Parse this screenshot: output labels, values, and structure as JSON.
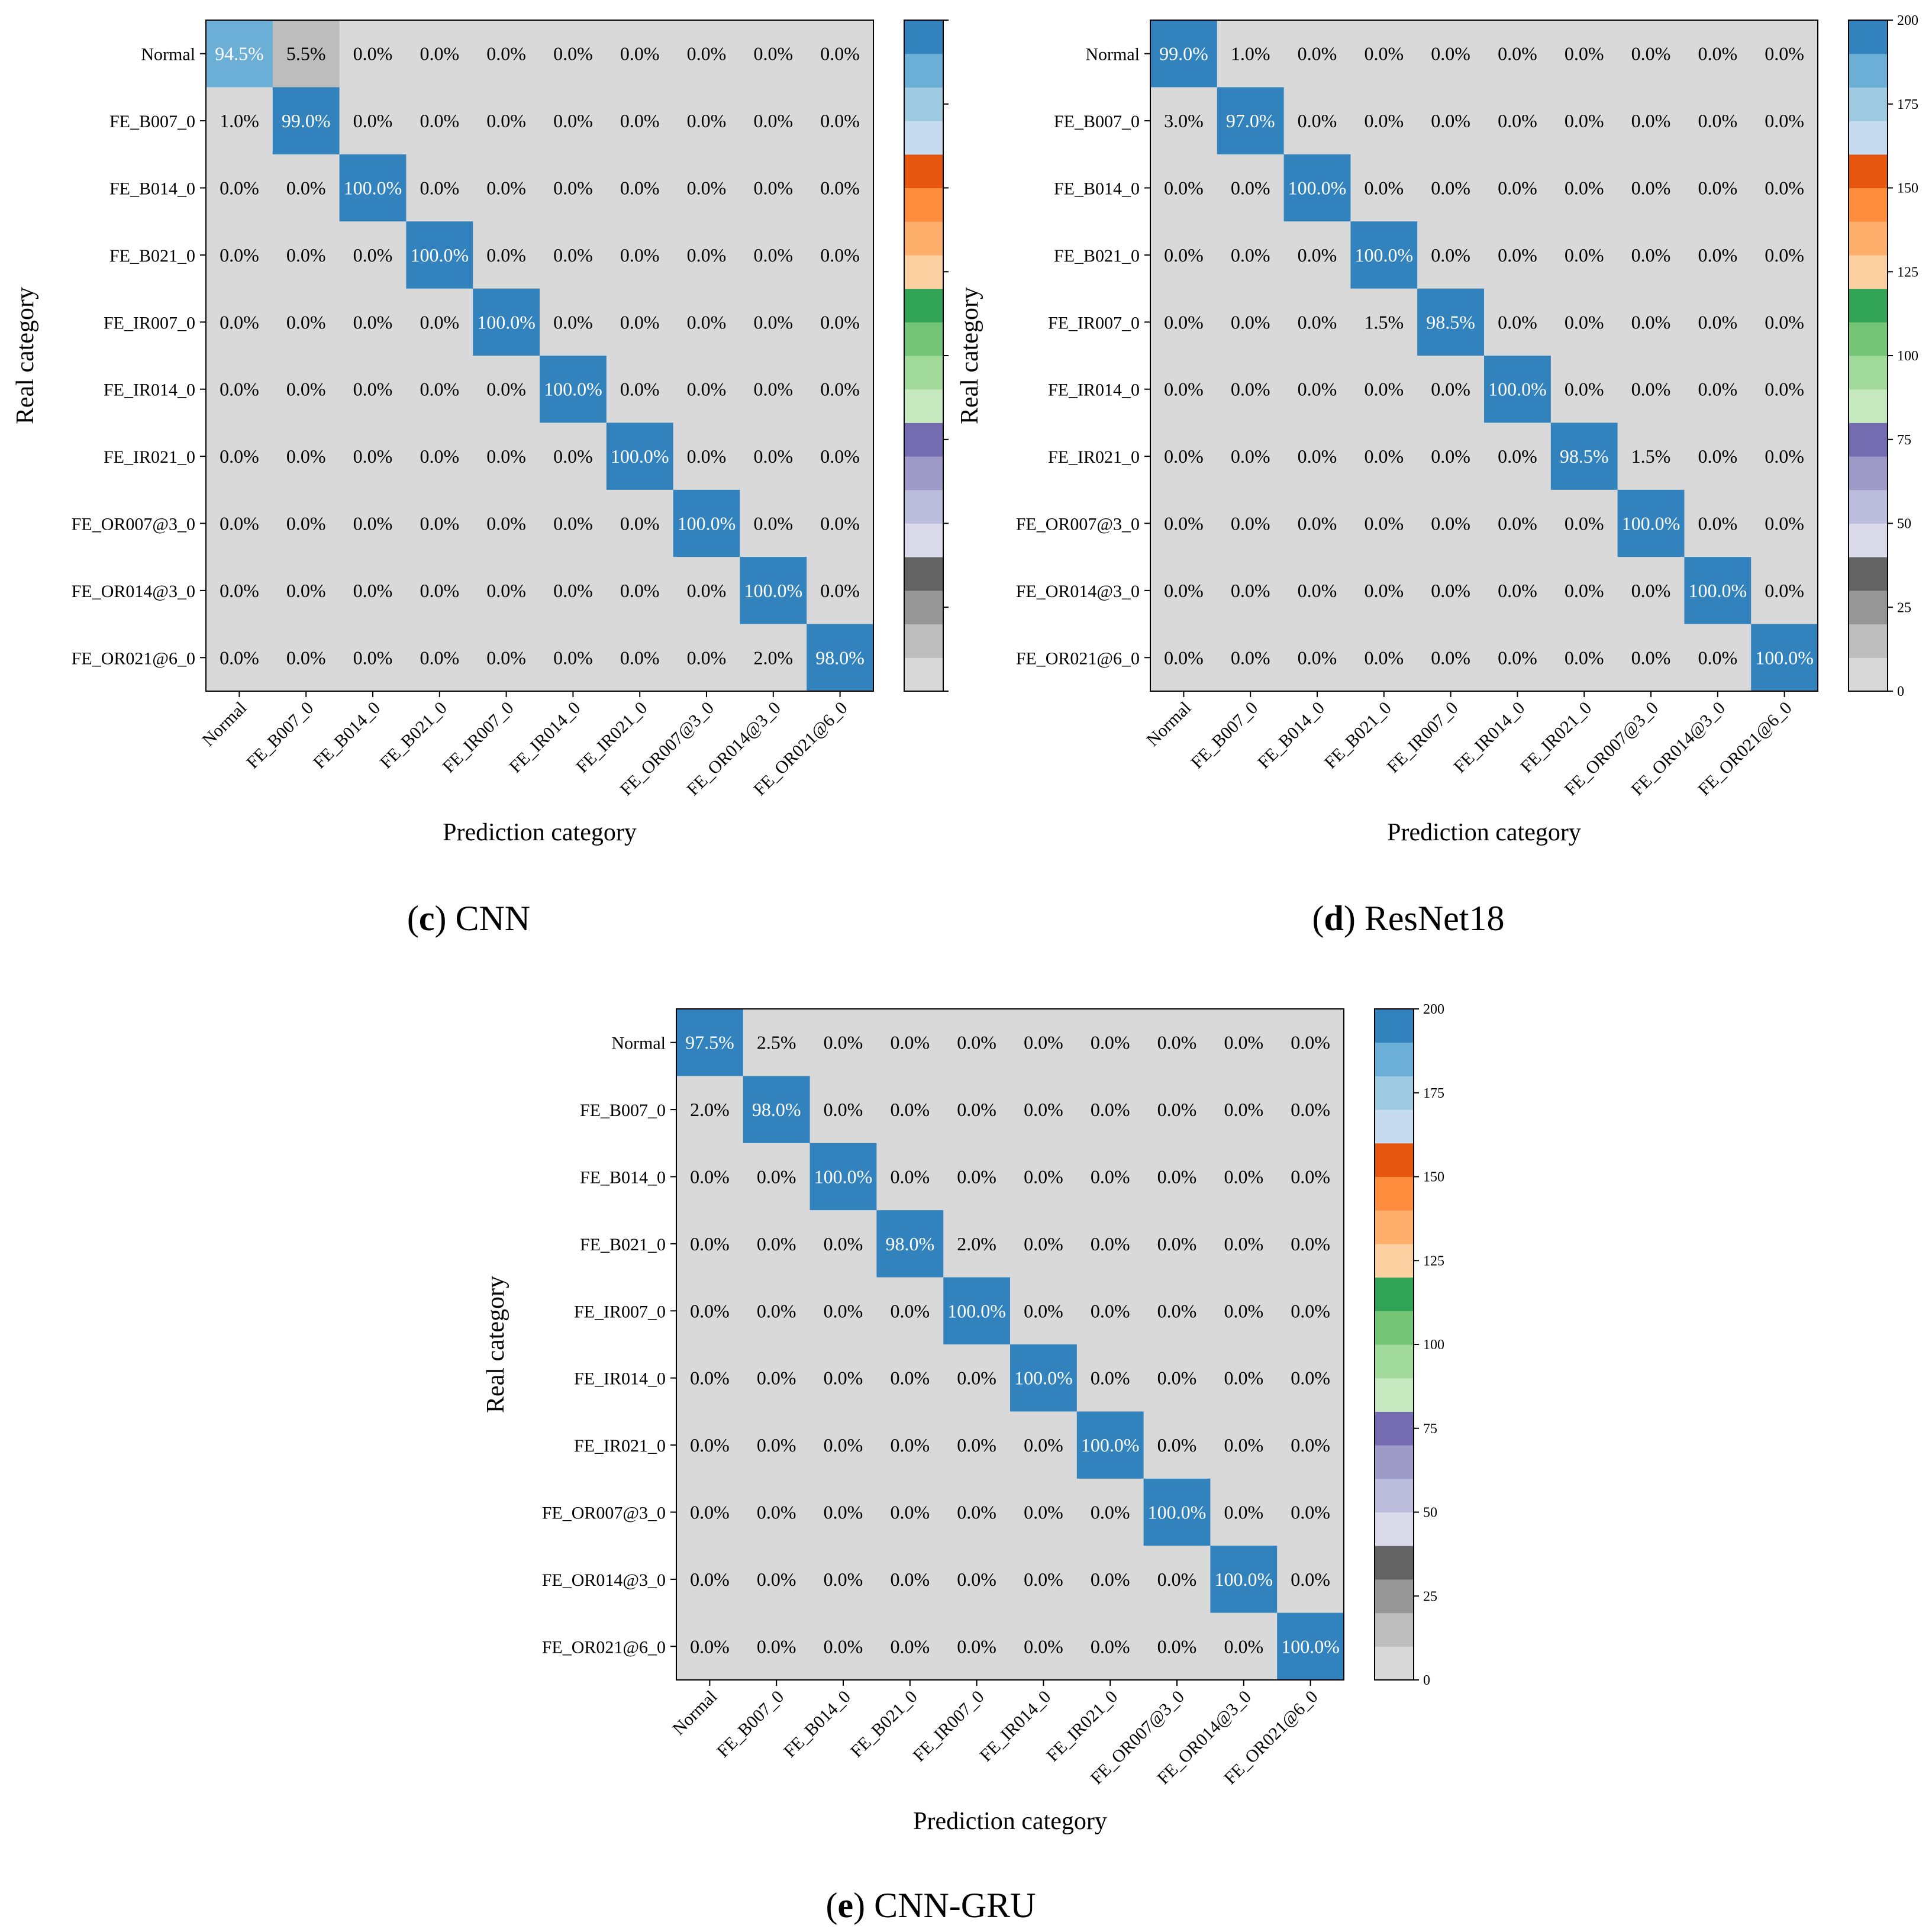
{
  "figure": {
    "categories": [
      "Normal",
      "FE_B007_0",
      "FE_B014_0",
      "FE_B021_0",
      "FE_IR007_0",
      "FE_IR014_0",
      "FE_IR021_0",
      "FE_OR007@3_0",
      "FE_OR014@3_0",
      "FE_OR021@6_0"
    ],
    "colormap": [
      "#d9d9d9",
      "#bdbdbd",
      "#969696",
      "#636363",
      "#dadaeb",
      "#bcbddc",
      "#9e9ac8",
      "#756bb1",
      "#c7e9c0",
      "#a1d99b",
      "#74c476",
      "#31a354",
      "#fdd0a2",
      "#fdae6b",
      "#fd8d3c",
      "#e6550d",
      "#c6dbef",
      "#9ecae1",
      "#6baed6",
      "#3182bd"
    ],
    "colorbar_ticks": [
      "0",
      "25",
      "50",
      "75",
      "100",
      "125",
      "150",
      "175",
      "200"
    ],
    "white_text_color": "#ffffff",
    "black_text_color": "#000000"
  },
  "chart_data": [
    {
      "type": "heatmap",
      "panel_letter": "c",
      "panel_title": "CNN",
      "xlabel": "Prediction category",
      "ylabel": "Real category",
      "value_range": [
        0,
        200
      ],
      "colorbar_tick_labels_visible": false,
      "values": [
        [
          189,
          11,
          0,
          0,
          0,
          0,
          0,
          0,
          0,
          0
        ],
        [
          2,
          198,
          0,
          0,
          0,
          0,
          0,
          0,
          0,
          0
        ],
        [
          0,
          0,
          200,
          0,
          0,
          0,
          0,
          0,
          0,
          0
        ],
        [
          0,
          0,
          0,
          200,
          0,
          0,
          0,
          0,
          0,
          0
        ],
        [
          0,
          0,
          0,
          0,
          200,
          0,
          0,
          0,
          0,
          0
        ],
        [
          0,
          0,
          0,
          0,
          0,
          200,
          0,
          0,
          0,
          0
        ],
        [
          0,
          0,
          0,
          0,
          0,
          0,
          200,
          0,
          0,
          0
        ],
        [
          0,
          0,
          0,
          0,
          0,
          0,
          0,
          200,
          0,
          0
        ],
        [
          0,
          0,
          0,
          0,
          0,
          0,
          0,
          0,
          200,
          0
        ],
        [
          0,
          0,
          0,
          0,
          0,
          0,
          0,
          0,
          4,
          196
        ]
      ],
      "labels": [
        [
          "94.5%",
          "5.5%",
          "0.0%",
          "0.0%",
          "0.0%",
          "0.0%",
          "0.0%",
          "0.0%",
          "0.0%",
          "0.0%"
        ],
        [
          "1.0%",
          "99.0%",
          "0.0%",
          "0.0%",
          "0.0%",
          "0.0%",
          "0.0%",
          "0.0%",
          "0.0%",
          "0.0%"
        ],
        [
          "0.0%",
          "0.0%",
          "100.0%",
          "0.0%",
          "0.0%",
          "0.0%",
          "0.0%",
          "0.0%",
          "0.0%",
          "0.0%"
        ],
        [
          "0.0%",
          "0.0%",
          "0.0%",
          "100.0%",
          "0.0%",
          "0.0%",
          "0.0%",
          "0.0%",
          "0.0%",
          "0.0%"
        ],
        [
          "0.0%",
          "0.0%",
          "0.0%",
          "0.0%",
          "100.0%",
          "0.0%",
          "0.0%",
          "0.0%",
          "0.0%",
          "0.0%"
        ],
        [
          "0.0%",
          "0.0%",
          "0.0%",
          "0.0%",
          "0.0%",
          "100.0%",
          "0.0%",
          "0.0%",
          "0.0%",
          "0.0%"
        ],
        [
          "0.0%",
          "0.0%",
          "0.0%",
          "0.0%",
          "0.0%",
          "0.0%",
          "100.0%",
          "0.0%",
          "0.0%",
          "0.0%"
        ],
        [
          "0.0%",
          "0.0%",
          "0.0%",
          "0.0%",
          "0.0%",
          "0.0%",
          "0.0%",
          "100.0%",
          "0.0%",
          "0.0%"
        ],
        [
          "0.0%",
          "0.0%",
          "0.0%",
          "0.0%",
          "0.0%",
          "0.0%",
          "0.0%",
          "0.0%",
          "100.0%",
          "0.0%"
        ],
        [
          "0.0%",
          "0.0%",
          "0.0%",
          "0.0%",
          "0.0%",
          "0.0%",
          "0.0%",
          "0.0%",
          "2.0%",
          "98.0%"
        ]
      ]
    },
    {
      "type": "heatmap",
      "panel_letter": "d",
      "panel_title": "ResNet18",
      "xlabel": "Prediction category",
      "ylabel": "Real category",
      "value_range": [
        0,
        200
      ],
      "colorbar_tick_labels_visible": true,
      "values": [
        [
          198,
          2,
          0,
          0,
          0,
          0,
          0,
          0,
          0,
          0
        ],
        [
          6,
          194,
          0,
          0,
          0,
          0,
          0,
          0,
          0,
          0
        ],
        [
          0,
          0,
          200,
          0,
          0,
          0,
          0,
          0,
          0,
          0
        ],
        [
          0,
          0,
          0,
          200,
          0,
          0,
          0,
          0,
          0,
          0
        ],
        [
          0,
          0,
          0,
          3,
          197,
          0,
          0,
          0,
          0,
          0
        ],
        [
          0,
          0,
          0,
          0,
          0,
          200,
          0,
          0,
          0,
          0
        ],
        [
          0,
          0,
          0,
          0,
          0,
          0,
          197,
          3,
          0,
          0
        ],
        [
          0,
          0,
          0,
          0,
          0,
          0,
          0,
          200,
          0,
          0
        ],
        [
          0,
          0,
          0,
          0,
          0,
          0,
          0,
          0,
          200,
          0
        ],
        [
          0,
          0,
          0,
          0,
          0,
          0,
          0,
          0,
          0,
          200
        ]
      ],
      "labels": [
        [
          "99.0%",
          "1.0%",
          "0.0%",
          "0.0%",
          "0.0%",
          "0.0%",
          "0.0%",
          "0.0%",
          "0.0%",
          "0.0%"
        ],
        [
          "3.0%",
          "97.0%",
          "0.0%",
          "0.0%",
          "0.0%",
          "0.0%",
          "0.0%",
          "0.0%",
          "0.0%",
          "0.0%"
        ],
        [
          "0.0%",
          "0.0%",
          "100.0%",
          "0.0%",
          "0.0%",
          "0.0%",
          "0.0%",
          "0.0%",
          "0.0%",
          "0.0%"
        ],
        [
          "0.0%",
          "0.0%",
          "0.0%",
          "100.0%",
          "0.0%",
          "0.0%",
          "0.0%",
          "0.0%",
          "0.0%",
          "0.0%"
        ],
        [
          "0.0%",
          "0.0%",
          "0.0%",
          "1.5%",
          "98.5%",
          "0.0%",
          "0.0%",
          "0.0%",
          "0.0%",
          "0.0%"
        ],
        [
          "0.0%",
          "0.0%",
          "0.0%",
          "0.0%",
          "0.0%",
          "100.0%",
          "0.0%",
          "0.0%",
          "0.0%",
          "0.0%"
        ],
        [
          "0.0%",
          "0.0%",
          "0.0%",
          "0.0%",
          "0.0%",
          "0.0%",
          "98.5%",
          "1.5%",
          "0.0%",
          "0.0%"
        ],
        [
          "0.0%",
          "0.0%",
          "0.0%",
          "0.0%",
          "0.0%",
          "0.0%",
          "0.0%",
          "100.0%",
          "0.0%",
          "0.0%"
        ],
        [
          "0.0%",
          "0.0%",
          "0.0%",
          "0.0%",
          "0.0%",
          "0.0%",
          "0.0%",
          "0.0%",
          "100.0%",
          "0.0%"
        ],
        [
          "0.0%",
          "0.0%",
          "0.0%",
          "0.0%",
          "0.0%",
          "0.0%",
          "0.0%",
          "0.0%",
          "0.0%",
          "100.0%"
        ]
      ]
    },
    {
      "type": "heatmap",
      "panel_letter": "e",
      "panel_title": "CNN-GRU",
      "xlabel": "Prediction category",
      "ylabel": "Real category",
      "value_range": [
        0,
        200
      ],
      "colorbar_tick_labels_visible": true,
      "values": [
        [
          195,
          5,
          0,
          0,
          0,
          0,
          0,
          0,
          0,
          0
        ],
        [
          4,
          196,
          0,
          0,
          0,
          0,
          0,
          0,
          0,
          0
        ],
        [
          0,
          0,
          200,
          0,
          0,
          0,
          0,
          0,
          0,
          0
        ],
        [
          0,
          0,
          0,
          196,
          4,
          0,
          0,
          0,
          0,
          0
        ],
        [
          0,
          0,
          0,
          0,
          200,
          0,
          0,
          0,
          0,
          0
        ],
        [
          0,
          0,
          0,
          0,
          0,
          200,
          0,
          0,
          0,
          0
        ],
        [
          0,
          0,
          0,
          0,
          0,
          0,
          200,
          0,
          0,
          0
        ],
        [
          0,
          0,
          0,
          0,
          0,
          0,
          0,
          200,
          0,
          0
        ],
        [
          0,
          0,
          0,
          0,
          0,
          0,
          0,
          0,
          200,
          0
        ],
        [
          0,
          0,
          0,
          0,
          0,
          0,
          0,
          0,
          0,
          200
        ]
      ],
      "labels": [
        [
          "97.5%",
          "2.5%",
          "0.0%",
          "0.0%",
          "0.0%",
          "0.0%",
          "0.0%",
          "0.0%",
          "0.0%",
          "0.0%"
        ],
        [
          "2.0%",
          "98.0%",
          "0.0%",
          "0.0%",
          "0.0%",
          "0.0%",
          "0.0%",
          "0.0%",
          "0.0%",
          "0.0%"
        ],
        [
          "0.0%",
          "0.0%",
          "100.0%",
          "0.0%",
          "0.0%",
          "0.0%",
          "0.0%",
          "0.0%",
          "0.0%",
          "0.0%"
        ],
        [
          "0.0%",
          "0.0%",
          "0.0%",
          "98.0%",
          "2.0%",
          "0.0%",
          "0.0%",
          "0.0%",
          "0.0%",
          "0.0%"
        ],
        [
          "0.0%",
          "0.0%",
          "0.0%",
          "0.0%",
          "100.0%",
          "0.0%",
          "0.0%",
          "0.0%",
          "0.0%",
          "0.0%"
        ],
        [
          "0.0%",
          "0.0%",
          "0.0%",
          "0.0%",
          "0.0%",
          "100.0%",
          "0.0%",
          "0.0%",
          "0.0%",
          "0.0%"
        ],
        [
          "0.0%",
          "0.0%",
          "0.0%",
          "0.0%",
          "0.0%",
          "0.0%",
          "100.0%",
          "0.0%",
          "0.0%",
          "0.0%"
        ],
        [
          "0.0%",
          "0.0%",
          "0.0%",
          "0.0%",
          "0.0%",
          "0.0%",
          "0.0%",
          "100.0%",
          "0.0%",
          "0.0%"
        ],
        [
          "0.0%",
          "0.0%",
          "0.0%",
          "0.0%",
          "0.0%",
          "0.0%",
          "0.0%",
          "0.0%",
          "100.0%",
          "0.0%"
        ],
        [
          "0.0%",
          "0.0%",
          "0.0%",
          "0.0%",
          "0.0%",
          "0.0%",
          "0.0%",
          "0.0%",
          "0.0%",
          "100.0%"
        ]
      ]
    }
  ]
}
